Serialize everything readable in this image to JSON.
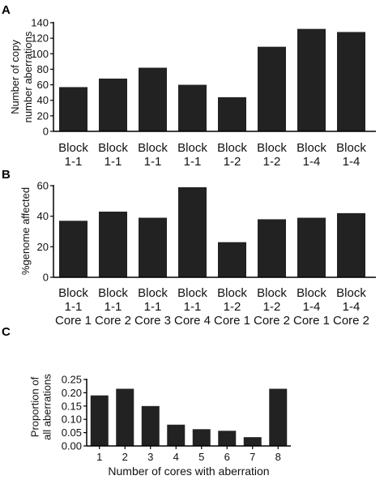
{
  "chart_data": [
    {
      "panel": "A",
      "type": "bar",
      "ylabel_lines": [
        "Number of copy",
        "number aberrations"
      ],
      "xlabel": "",
      "ylim": [
        0,
        140
      ],
      "yticks": [
        "0",
        "20",
        "40",
        "60",
        "80",
        "100",
        "120",
        "140"
      ],
      "categories": [
        [
          "Block",
          "1-1"
        ],
        [
          "Block",
          "1-1"
        ],
        [
          "Block",
          "1-1"
        ],
        [
          "Block",
          "1-1"
        ],
        [
          "Block",
          "1-2"
        ],
        [
          "Block",
          "1-2"
        ],
        [
          "Block",
          "1-4"
        ],
        [
          "Block",
          "1-4"
        ]
      ],
      "values": [
        57,
        68,
        82,
        60,
        44,
        109,
        132,
        128
      ],
      "bar_color": "#222222"
    },
    {
      "panel": "B",
      "type": "bar",
      "ylabel_lines": [
        "%genome affected"
      ],
      "xlabel": "",
      "ylim": [
        0,
        60
      ],
      "yticks": [
        "0",
        "20",
        "40",
        "60"
      ],
      "categories": [
        [
          "Block",
          "1-1",
          "Core 1"
        ],
        [
          "Block",
          "1-1",
          "Core 2"
        ],
        [
          "Block",
          "1-1",
          "Core 3"
        ],
        [
          "Block",
          "1-1",
          "Core 4"
        ],
        [
          "Block",
          "1-2",
          "Core 1"
        ],
        [
          "Block",
          "1-2",
          "Core 2"
        ],
        [
          "Block",
          "1-4",
          "Core 1"
        ],
        [
          "Block",
          "1-4",
          "Core 2"
        ]
      ],
      "values": [
        37,
        43,
        39,
        59,
        23,
        38,
        39,
        42
      ],
      "bar_color": "#222222"
    },
    {
      "panel": "C",
      "type": "bar",
      "ylabel_lines": [
        "Proportion of",
        "all aberrations"
      ],
      "xlabel": "Number of cores with aberration",
      "ylim": [
        0,
        0.25
      ],
      "yticks": [
        "0.00",
        "0.05",
        "0.10",
        "0.15",
        "0.20",
        "0.25"
      ],
      "categories": [
        [
          "1"
        ],
        [
          "2"
        ],
        [
          "3"
        ],
        [
          "4"
        ],
        [
          "5"
        ],
        [
          "6"
        ],
        [
          "7"
        ],
        [
          "8"
        ]
      ],
      "values": [
        0.19,
        0.215,
        0.15,
        0.08,
        0.063,
        0.057,
        0.033,
        0.215
      ],
      "bar_color": "#222222"
    }
  ]
}
